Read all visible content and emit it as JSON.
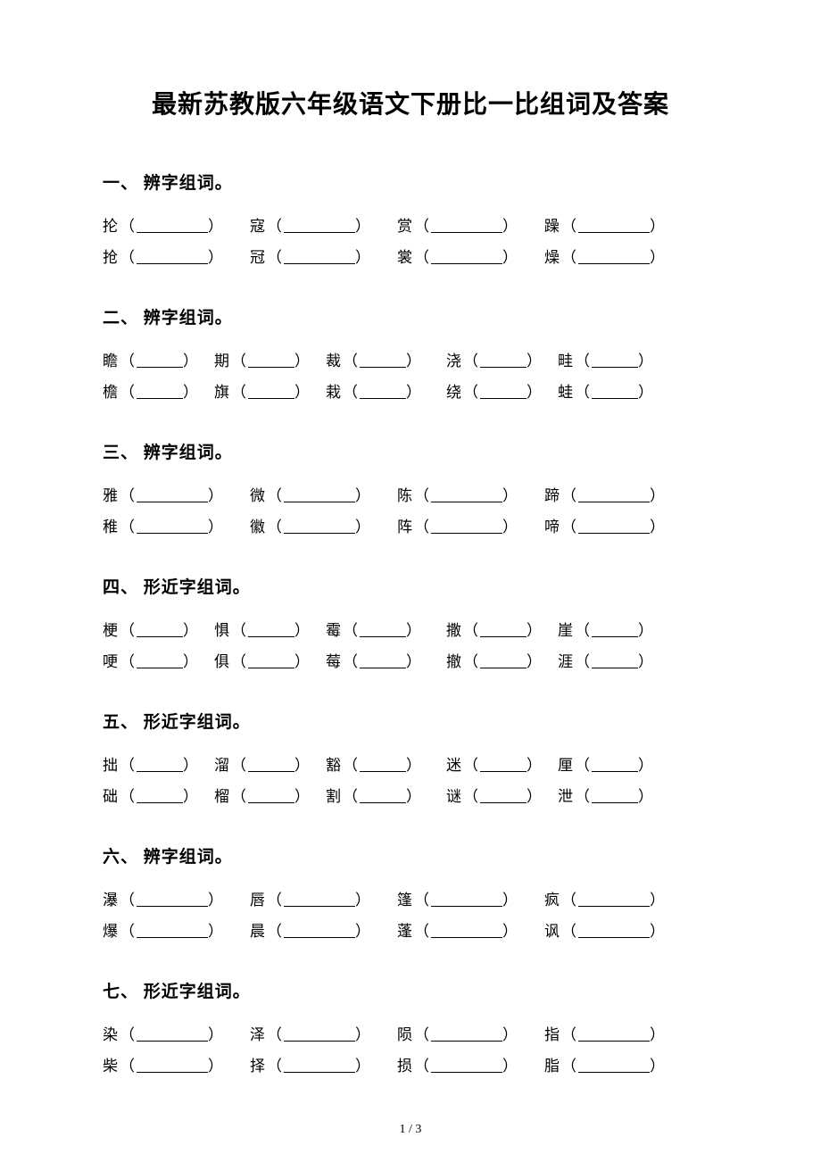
{
  "document": {
    "title": "最新苏教版六年级语文下册比一比组词及答案",
    "page_number": "1 / 3",
    "background_color": "#ffffff",
    "text_color": "#000000",
    "title_fontsize": 28,
    "heading_fontsize": 19,
    "body_fontsize": 17
  },
  "sections": [
    {
      "heading": "一、 辨字组词。",
      "cols": 4,
      "blank_width": 80,
      "rows": [
        [
          "抡",
          "寇",
          "赏",
          "躁"
        ],
        [
          "抢",
          "冠",
          "裳",
          "燥"
        ]
      ]
    },
    {
      "heading": "二、 辨字组词。",
      "cols": 5,
      "blank_width": 52,
      "rows": [
        [
          "瞻",
          "期",
          "裁",
          "浇",
          "畦"
        ],
        [
          "檐",
          "旗",
          "栽",
          "绕",
          "蛙"
        ]
      ]
    },
    {
      "heading": "三、 辨字组词。",
      "cols": 4,
      "blank_width": 80,
      "rows": [
        [
          "雅",
          "微",
          "陈",
          "蹄"
        ],
        [
          "稚",
          "徽",
          "阵",
          "啼"
        ]
      ]
    },
    {
      "heading": "四、 形近字组词。",
      "cols": 5,
      "blank_width": 52,
      "rows": [
        [
          "梗",
          "惧",
          "霉",
          "撒",
          "崖"
        ],
        [
          "哽",
          "俱",
          "莓",
          "撤",
          "涯"
        ]
      ]
    },
    {
      "heading": "五、 形近字组词。",
      "cols": 5,
      "blank_width": 52,
      "rows": [
        [
          "拙",
          "溜",
          "豁",
          "迷",
          "厘"
        ],
        [
          "础",
          "榴",
          "割",
          "谜",
          "泄"
        ]
      ]
    },
    {
      "heading": "六、 辨字组词。",
      "cols": 4,
      "blank_width": 80,
      "rows": [
        [
          "瀑",
          "唇",
          "篷",
          "疯"
        ],
        [
          "爆",
          "晨",
          "蓬",
          "讽"
        ]
      ]
    },
    {
      "heading": "七、 形近字组词。",
      "cols": 4,
      "blank_width": 80,
      "rows": [
        [
          "染",
          "泽",
          "陨",
          "指"
        ],
        [
          "柴",
          "择",
          "损",
          "脂"
        ]
      ]
    }
  ]
}
